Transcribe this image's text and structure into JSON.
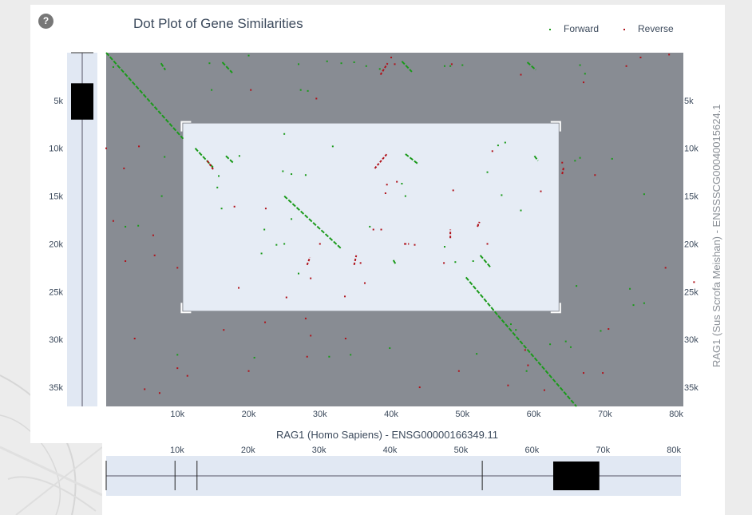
{
  "title": "Dot Plot of Gene Similarities",
  "help_icon": "?",
  "legend": [
    {
      "label": "Forward",
      "color": "#1a9a1a"
    },
    {
      "label": "Reverse",
      "color": "#b0121a"
    }
  ],
  "colors": {
    "forward": "#1a9a1a",
    "reverse": "#b0121a",
    "plot_bg": "#888c93",
    "selection": "#e6ecf5"
  },
  "chart_data": {
    "type": "scatter",
    "xlabel": "RAG1 (Homo Sapiens) - ENSG00000166349.11",
    "ylabel": "RAG1 (Sus Scrofa Meishan) - ENSSSCG00040015624.1",
    "xlim": [
      0,
      81000
    ],
    "ylim": [
      0,
      37000
    ],
    "y_reversed": true,
    "x_ticks": [
      "10k",
      "20k",
      "30k",
      "40k",
      "50k",
      "60k",
      "70k",
      "80k"
    ],
    "x_tick_values": [
      10000,
      20000,
      30000,
      40000,
      50000,
      60000,
      70000,
      80000
    ],
    "y_ticks": [
      "5k",
      "10k",
      "15k",
      "20k",
      "25k",
      "30k",
      "35k"
    ],
    "y_tick_values": [
      5000,
      10000,
      15000,
      20000,
      25000,
      30000,
      35000
    ],
    "selection": {
      "x": [
        10800,
        63500
      ],
      "y": [
        7400,
        27000
      ]
    },
    "forward_segments": [
      [
        [
          0,
          0
        ],
        [
          10800,
          9000
        ]
      ],
      [
        [
          12500,
          10000
        ],
        [
          15000,
          12000
        ]
      ],
      [
        [
          25000,
          15000
        ],
        [
          33000,
          20500
        ]
      ],
      [
        [
          50500,
          23500
        ],
        [
          55000,
          27500
        ]
      ],
      [
        [
          55000,
          27500
        ],
        [
          66000,
          37000
        ]
      ],
      [
        [
          7700,
          1100
        ],
        [
          8300,
          1800
        ]
      ],
      [
        [
          16300,
          1000
        ],
        [
          17700,
          2100
        ]
      ],
      [
        [
          41500,
          900
        ],
        [
          42900,
          2000
        ]
      ],
      [
        [
          59100,
          1000
        ],
        [
          60300,
          1800
        ]
      ],
      [
        [
          16800,
          10800
        ],
        [
          17800,
          11500
        ]
      ],
      [
        [
          42000,
          10600
        ],
        [
          43700,
          11600
        ]
      ],
      [
        [
          60100,
          10800
        ],
        [
          60600,
          11300
        ]
      ],
      [
        [
          52500,
          21200
        ],
        [
          54000,
          22500
        ]
      ],
      [
        [
          40300,
          21700
        ],
        [
          40700,
          22200
        ]
      ]
    ],
    "forward_points": [
      [
        1000,
        1500
      ],
      [
        14500,
        1100
      ],
      [
        14800,
        3900
      ],
      [
        20000,
        300
      ],
      [
        27000,
        1200
      ],
      [
        31000,
        900
      ],
      [
        33000,
        1100
      ],
      [
        34800,
        1000
      ],
      [
        36500,
        1400
      ],
      [
        38400,
        1700
      ],
      [
        47500,
        1400
      ],
      [
        48300,
        1400
      ],
      [
        50000,
        1300
      ],
      [
        66500,
        1300
      ],
      [
        67200,
        2200
      ],
      [
        27300,
        3900
      ],
      [
        28300,
        4000
      ],
      [
        25000,
        8500
      ],
      [
        24800,
        12400
      ],
      [
        26000,
        12700
      ],
      [
        28000,
        12800
      ],
      [
        31800,
        9800
      ],
      [
        37000,
        18200
      ],
      [
        41500,
        13700
      ],
      [
        42000,
        15000
      ],
      [
        47500,
        20300
      ],
      [
        49000,
        21900
      ],
      [
        51500,
        21800
      ],
      [
        58200,
        16500
      ],
      [
        55000,
        9700
      ],
      [
        56000,
        9400
      ],
      [
        25000,
        20000
      ],
      [
        27000,
        23100
      ],
      [
        16200,
        16300
      ],
      [
        15800,
        12900
      ],
      [
        15600,
        14100
      ],
      [
        7800,
        15000
      ],
      [
        8200,
        10900
      ],
      [
        2700,
        18200
      ],
      [
        4500,
        18100
      ],
      [
        69400,
        29100
      ],
      [
        64500,
        30200
      ],
      [
        65200,
        30800
      ],
      [
        62300,
        30500
      ],
      [
        59000,
        33300
      ],
      [
        56800,
        28400
      ],
      [
        57500,
        29000
      ],
      [
        52000,
        31500
      ],
      [
        34300,
        31600
      ],
      [
        39800,
        30900
      ],
      [
        31300,
        31800
      ],
      [
        20800,
        31900
      ],
      [
        10000,
        31600
      ],
      [
        18700,
        10800
      ],
      [
        71000,
        11100
      ],
      [
        65800,
        11300
      ],
      [
        66500,
        11000
      ],
      [
        74000,
        26400
      ],
      [
        75500,
        26200
      ],
      [
        66000,
        24400
      ],
      [
        73500,
        24700
      ],
      [
        75500,
        14800
      ],
      [
        55500,
        14900
      ],
      [
        53500,
        12500
      ],
      [
        26000,
        17400
      ],
      [
        22200,
        18500
      ],
      [
        21800,
        21000
      ],
      [
        23900,
        20100
      ]
    ],
    "reverse_points": [
      [
        20300,
        3900
      ],
      [
        29500,
        4800
      ],
      [
        40000,
        500
      ],
      [
        58200,
        2300
      ],
      [
        67000,
        3100
      ],
      [
        73000,
        1400
      ],
      [
        75000,
        500
      ],
      [
        79000,
        200
      ],
      [
        4600,
        9800
      ],
      [
        2500,
        12100
      ],
      [
        0,
        10000
      ],
      [
        1000,
        17600
      ],
      [
        6600,
        19100
      ],
      [
        2700,
        21800
      ],
      [
        22300,
        28200
      ],
      [
        16500,
        29000
      ],
      [
        28000,
        27800
      ],
      [
        28700,
        23600
      ],
      [
        30000,
        20000
      ],
      [
        33500,
        25500
      ],
      [
        35700,
        22000
      ],
      [
        38600,
        18500
      ],
      [
        36300,
        24100
      ],
      [
        39400,
        13800
      ],
      [
        40800,
        13500
      ],
      [
        39200,
        14700
      ],
      [
        37500,
        18500
      ],
      [
        43300,
        20100
      ],
      [
        47400,
        22000
      ],
      [
        52200,
        18000
      ],
      [
        53500,
        20000
      ],
      [
        48700,
        14400
      ],
      [
        48500,
        1200
      ],
      [
        54200,
        10300
      ],
      [
        61000,
        14500
      ],
      [
        64000,
        11500
      ],
      [
        68600,
        12800
      ],
      [
        70500,
        28900
      ],
      [
        69700,
        33500
      ],
      [
        78500,
        22500
      ],
      [
        82500,
        24000
      ],
      [
        58800,
        31100
      ],
      [
        59200,
        32700
      ],
      [
        49500,
        33300
      ],
      [
        56400,
        34800
      ],
      [
        44000,
        35000
      ],
      [
        33600,
        29900
      ],
      [
        28700,
        29600
      ],
      [
        22400,
        16300
      ],
      [
        18000,
        16100
      ],
      [
        20000,
        33300
      ],
      [
        18600,
        24600
      ],
      [
        25300,
        25600
      ],
      [
        28200,
        31800
      ],
      [
        10000,
        33000
      ],
      [
        4000,
        29900
      ],
      [
        7500,
        35600
      ],
      [
        11400,
        33800
      ],
      [
        5400,
        35200
      ],
      [
        6800,
        21200
      ],
      [
        10000,
        22500
      ],
      [
        61500,
        35300
      ],
      [
        67000,
        33500
      ],
      [
        40500,
        1200
      ]
    ],
    "reverse_segments": [
      [
        [
          38500,
          2300
        ],
        [
          39500,
          1100
        ]
      ],
      [
        [
          37700,
          12100
        ],
        [
          39500,
          10500
        ]
      ],
      [
        [
          14200,
          11300
        ],
        [
          15100,
          12300
        ]
      ],
      [
        [
          28200,
          22200
        ],
        [
          28600,
          21400
        ]
      ],
      [
        [
          34800,
          22200
        ],
        [
          35100,
          21200
        ]
      ],
      [
        [
          41800,
          20000
        ],
        [
          42500,
          20000
        ]
      ],
      [
        [
          48300,
          19400
        ],
        [
          48300,
          18500
        ]
      ],
      [
        [
          52100,
          18200
        ],
        [
          52400,
          17700
        ]
      ],
      [
        [
          64000,
          12700
        ],
        [
          64200,
          12000
        ]
      ]
    ]
  },
  "overview_x": {
    "ticks": [
      "10k",
      "20k",
      "30k",
      "40k",
      "50k",
      "60k",
      "70k",
      "80k"
    ],
    "window": [
      63000,
      69500
    ],
    "markers": [
      0,
      9700,
      12800,
      53000
    ]
  },
  "overview_y": {
    "ticks": [
      "5k",
      "10k",
      "15k",
      "20k",
      "25k",
      "30k",
      "35k"
    ],
    "window": [
      3200,
      7000
    ]
  }
}
